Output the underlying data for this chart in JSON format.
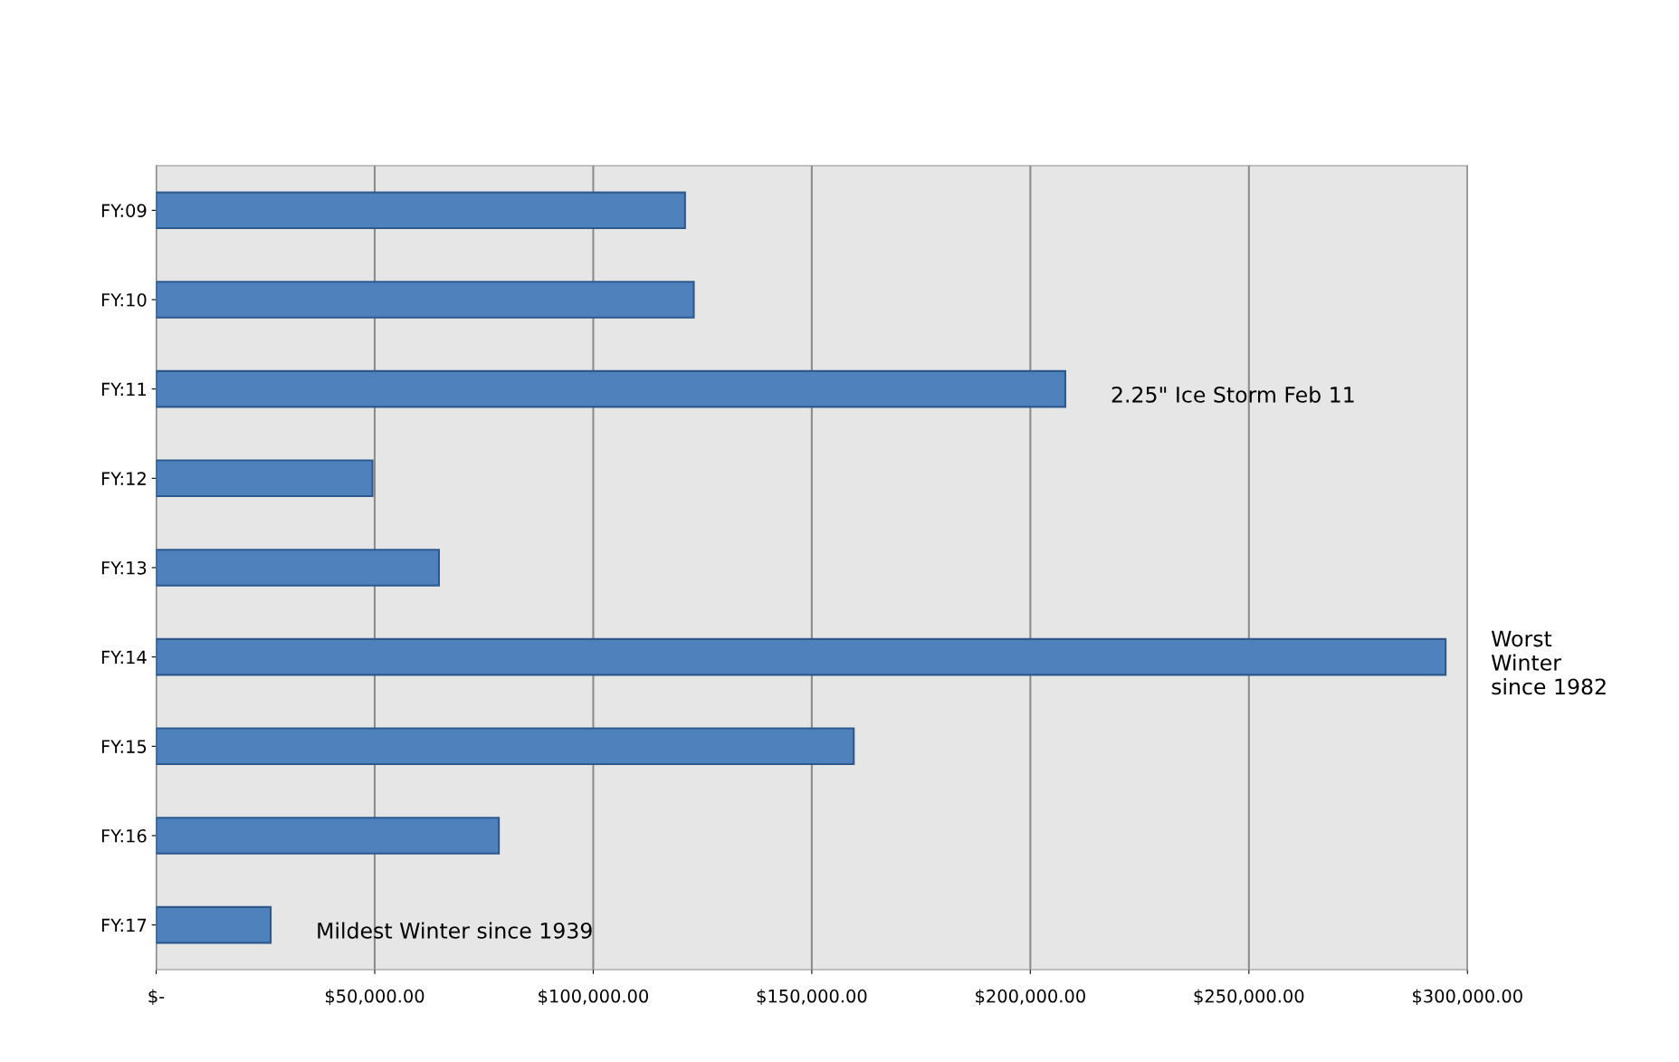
{
  "chart_data": {
    "type": "bar",
    "orientation": "horizontal",
    "categories": [
      "FY:09",
      "FY:10",
      "FY:11",
      "FY:12",
      "FY:13",
      "FY:14",
      "FY:15",
      "FY:16",
      "FY:17"
    ],
    "values": [
      121000,
      123000,
      208000,
      49500,
      64700,
      295000,
      159600,
      78400,
      26200
    ],
    "color": "#4f81bd",
    "xlim": [
      0,
      300000
    ],
    "xticks": [
      {
        "value": 0,
        "label": "$-"
      },
      {
        "value": 50000,
        "label": "$50,000.00"
      },
      {
        "value": 100000,
        "label": "$100,000.00"
      },
      {
        "value": 150000,
        "label": "$150,000.00"
      },
      {
        "value": 200000,
        "label": "$200,000.00"
      },
      {
        "value": 250000,
        "label": "$250,000.00"
      },
      {
        "value": 300000,
        "label": "$300,000.00"
      }
    ],
    "grid": "x",
    "legend": false,
    "annotations": [
      {
        "text": "2.25\" Ice Storm Feb 11",
        "x": 208000,
        "y": "FY:11"
      },
      {
        "text": "Worst\nWinter\nsince 1982",
        "x": 295000,
        "y": "FY:14"
      },
      {
        "text": "Mildest Winter since 1939",
        "x": 26200,
        "y": "FY:17"
      }
    ]
  }
}
